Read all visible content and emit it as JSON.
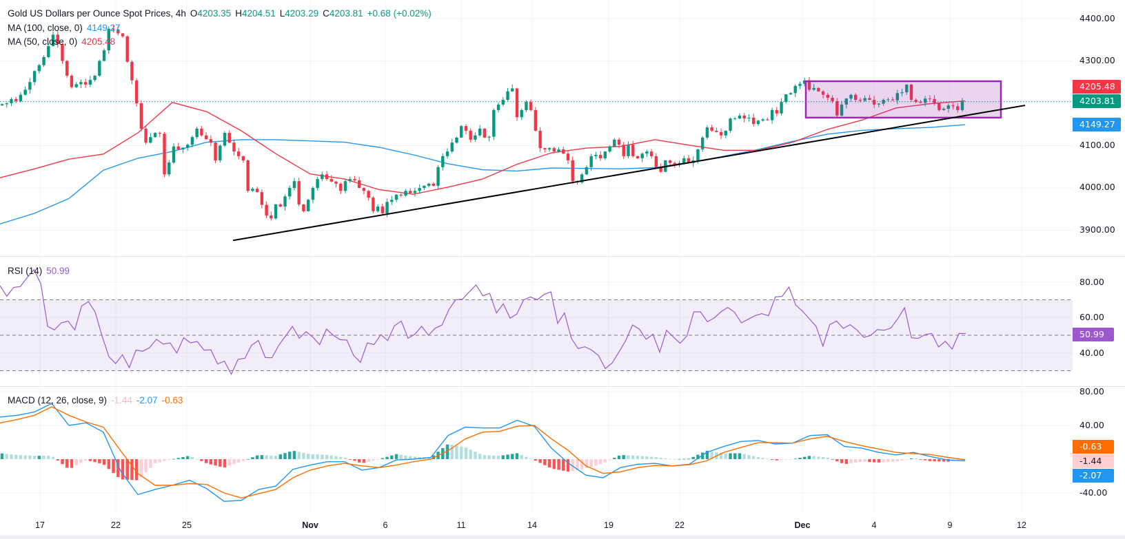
{
  "header": {
    "title": "Gold US Dollars per Ounce Spot Prices, 4h",
    "open_label": "O",
    "open": "4203.35",
    "high_label": "H",
    "high": "4204.51",
    "low_label": "L",
    "low": "4203.29",
    "close_label": "C",
    "close": "4203.81",
    "change": "+0.68 (+0.02%)"
  },
  "legend": {
    "ma100_label": "MA (100, close, 0)",
    "ma100_value": "4149.27",
    "ma50_label": "MA (50, close, 0)",
    "ma50_value": "4205.48",
    "rsi_label": "RSI (14)",
    "rsi_value": "50.99",
    "macd_label": "MACD (12, 26, close, 9)",
    "macd_hist_value": "-1.44",
    "macd_value": "-2.07",
    "macd_signal_value": "-0.63"
  },
  "colors": {
    "up": "#089981",
    "down": "#f23645",
    "ma100": "#2196f3",
    "ma50": "#f23645",
    "rsi": "#9c57cf",
    "macd": "#2196f3",
    "signal": "#ff6d00",
    "hist_up_strong": "#26a69a",
    "hist_up_weak": "#b2dfdb",
    "hist_down_strong": "#ff5252",
    "hist_down_weak": "#ffcdd2",
    "box": "#9c27b0",
    "trendline": "#000000"
  },
  "price_axis": {
    "ticks": [
      "4400.00",
      "4300.00",
      "4100.00",
      "4000.00",
      "3900.00"
    ],
    "tags": {
      "ma50": "4205.48",
      "last": "4203.81",
      "ma100": "4149.27"
    }
  },
  "rsi_axis": {
    "ticks": [
      "80.00",
      "60.00",
      "40.00"
    ],
    "tag": "50.99"
  },
  "macd_axis": {
    "ticks": [
      "80.00",
      "40.00",
      "-40.00"
    ],
    "tags": {
      "signal": "-0.63",
      "hist": "-1.44",
      "macd": "-2.07"
    }
  },
  "date_axis": {
    "labels": [
      "17",
      "22",
      "25",
      "Nov",
      "6",
      "11",
      "14",
      "19",
      "22",
      "Dec",
      "4",
      "9",
      "12"
    ]
  },
  "chart_data": [
    {
      "type": "candlestick",
      "title": "Gold US Dollars per Ounce Spot Prices, 4h",
      "ylim": [
        3850,
        4420
      ],
      "close_series": [
        4198,
        4200,
        4210,
        4205,
        4220,
        4232,
        4250,
        4276,
        4290,
        4309,
        4335,
        4362,
        4340,
        4300,
        4265,
        4238,
        4245,
        4250,
        4244,
        4255,
        4265,
        4300,
        4325,
        4376,
        4374,
        4365,
        4358,
        4298,
        4254,
        4200,
        4140,
        4107,
        4120,
        4130,
        4128,
        4032,
        4060,
        4098,
        4091,
        4095,
        4102,
        4120,
        4140,
        4124,
        4115,
        4107,
        4065,
        4100,
        4130,
        4107,
        4086,
        4075,
        4065,
        3993,
        3998,
        3990,
        3960,
        3935,
        3928,
        3961,
        3956,
        3980,
        4000,
        4016,
        3961,
        3945,
        3972,
        4000,
        4021,
        4032,
        4021,
        4015,
        4010,
        3993,
        4016,
        4021,
        4018,
        4000,
        3993,
        3977,
        3945,
        3956,
        3940,
        3967,
        3972,
        3984,
        3982,
        3993,
        3988,
        3993,
        4000,
        4005,
        4010,
        4005,
        4049,
        4075,
        4086,
        4107,
        4119,
        4146,
        4135,
        4114,
        4124,
        4140,
        4119,
        4121,
        4184,
        4197,
        4208,
        4228,
        4235,
        4167,
        4184,
        4203,
        4184,
        4135,
        4094,
        4091,
        4094,
        4086,
        4091,
        4081,
        4065,
        4016,
        4013,
        4032,
        4049,
        4075,
        4078,
        4070,
        4086,
        4098,
        4114,
        4102,
        4075,
        4102,
        4075,
        4070,
        4081,
        4086,
        4075,
        4049,
        4038,
        4065,
        4059,
        4054,
        4059,
        4070,
        4059,
        4065,
        4091,
        4119,
        4143,
        4135,
        4132,
        4124,
        4135,
        4164,
        4164,
        4171,
        4164,
        4166,
        4151,
        4159,
        4162,
        4160,
        4184,
        4176,
        4203,
        4221,
        4224,
        4241,
        4246,
        4254,
        4232,
        4236,
        4228,
        4220,
        4213,
        4205,
        4171,
        4197,
        4211,
        4220,
        4208,
        4206,
        4212,
        4208,
        4197,
        4199,
        4208,
        4209,
        4207,
        4224,
        4226,
        4244,
        4208,
        4203,
        4201,
        4211,
        4210,
        4200,
        4184,
        4187,
        4195,
        4193,
        4184,
        4203.81
      ],
      "ma100": [
        3915,
        3940,
        3975,
        4042,
        4070,
        4086,
        4108,
        4114,
        4114,
        4111,
        4108,
        4096,
        4078,
        4057,
        4043,
        4040,
        4047,
        4046,
        4045,
        4048,
        4060,
        4075,
        4091,
        4110,
        4127,
        4136,
        4140,
        4143,
        4149.27
      ],
      "ma50": [
        4024,
        4045,
        4068,
        4080,
        4130,
        4202,
        4180,
        4135,
        4081,
        4033,
        4021,
        3996,
        3985,
        4002,
        4021,
        4056,
        4083,
        4094,
        4098,
        4114,
        4101,
        4089,
        4089,
        4108,
        4138,
        4160,
        4189,
        4199,
        4205.48
      ],
      "consolidation_box": {
        "price_top": 4252,
        "price_bottom": 4166
      },
      "trendline": {
        "price_start": 3876,
        "price_end": 4195
      },
      "last_price": 4203.81
    },
    {
      "type": "line",
      "title": "RSI (14)",
      "ylim": [
        20,
        90
      ],
      "bands": [
        70,
        50,
        30
      ],
      "values": [
        78,
        72,
        77,
        77.5,
        82.6,
        87,
        79,
        55,
        53,
        57,
        58,
        53,
        66.5,
        69,
        63,
        49.6,
        38,
        34,
        39,
        31.7,
        41.6,
        41,
        43,
        47.7,
        45,
        45.7,
        40,
        48.6,
        45.7,
        46.5,
        41.6,
        41.8,
        33.8,
        35.4,
        28,
        36.4,
        37,
        44.4,
        47,
        37.4,
        37.3,
        44.4,
        49.6,
        55,
        48.3,
        52,
        49,
        44.7,
        53.5,
        50,
        47.5,
        47.3,
        38.6,
        34.7,
        45.7,
        44.7,
        50.3,
        47,
        55.4,
        58,
        48.3,
        50.6,
        55,
        50,
        54,
        55.8,
        64.5,
        70,
        70.3,
        74.5,
        78.4,
        72.3,
        73.6,
        62.6,
        67.7,
        59.6,
        62,
        70,
        71.6,
        70,
        73,
        74.5,
        56.7,
        62.6,
        48.3,
        42.5,
        43.5,
        41.6,
        38.6,
        31.2,
        34.3,
        40.5,
        47,
        55.8,
        53.5,
        47.7,
        50.6,
        40.5,
        52.8,
        49,
        45.5,
        49.6,
        63.2,
        63.2,
        57.6,
        59.7,
        63.2,
        65.7,
        63,
        57,
        59,
        61,
        62.2,
        61,
        71.6,
        71.9,
        77.2,
        67,
        63.6,
        59.3,
        55,
        43.8,
        56,
        58,
        53.9,
        56,
        53,
        48.8,
        49.9,
        53.2,
        52.8,
        54.1,
        59.3,
        65.5,
        48.6,
        48.2,
        50.3,
        51,
        43.4,
        46.6,
        42.2,
        51,
        50.99
      ]
    },
    {
      "type": "line+bar",
      "title": "MACD (12, 26, close, 9)",
      "ylim": [
        -60,
        85
      ],
      "macd": [
        50,
        52,
        56,
        66,
        40,
        43,
        32,
        -14,
        -42,
        -36,
        -31,
        -25,
        -35,
        -50,
        -49,
        -36,
        -32,
        -12,
        -7,
        -3,
        -3,
        -13,
        -10,
        -1,
        0,
        2,
        28,
        38,
        37,
        37,
        46,
        39,
        13,
        -5,
        -19,
        -22,
        -10,
        -6,
        -5,
        -8,
        -6,
        8,
        15,
        21,
        22,
        18,
        19,
        28,
        29,
        15,
        13,
        8,
        5,
        8,
        3,
        -1,
        -2.07
      ],
      "signal": [
        43,
        47,
        52,
        62,
        52,
        44,
        38,
        10,
        -17,
        -31,
        -31,
        -29,
        -30,
        -40,
        -46,
        -41,
        -36,
        -22,
        -13,
        -8,
        -5,
        -8,
        -10,
        -7,
        -3,
        0,
        10,
        24,
        32,
        33,
        39,
        40,
        24,
        10,
        -8,
        -17,
        -15,
        -10,
        -7.5,
        -8,
        -6.5,
        -2,
        8,
        14,
        19.5,
        19.5,
        19,
        24,
        27,
        21,
        16,
        12,
        8,
        6.6,
        5.5,
        2,
        -0.63
      ]
    }
  ]
}
